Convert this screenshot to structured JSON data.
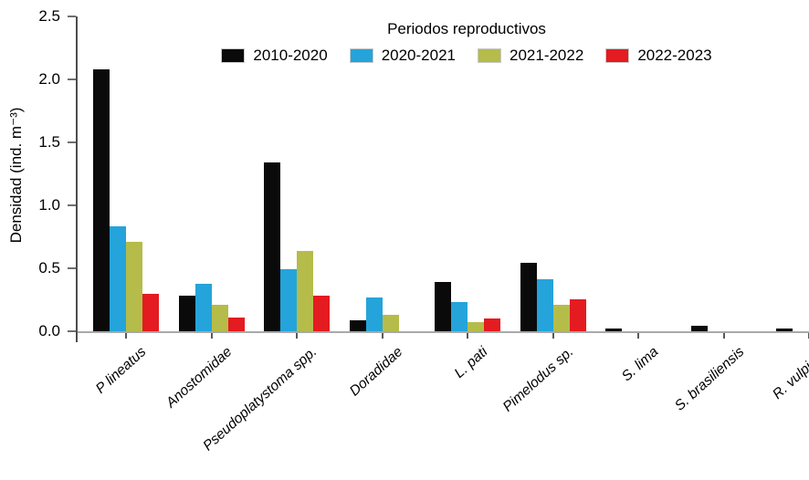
{
  "legend": {
    "title": "Periodos reproductivos"
  },
  "chart_data": {
    "type": "bar",
    "subtype": "grouped-vertical",
    "legend_title": "Periodos reproductivos",
    "legend_position": "top-center",
    "grid": false,
    "xlabel": "",
    "ylabel": "Densidad (ind. m⁻³)",
    "ylim": [
      0,
      2.5
    ],
    "yticks": [
      0,
      0.5,
      1.0,
      1.5,
      2.0,
      2.5
    ],
    "ytick_labels": [
      "0.0",
      "0.5",
      "1.0",
      "1.5",
      "2.0",
      "2.5"
    ],
    "categories": [
      "P lineatus",
      "Anostomidae",
      "Pseudoplatystoma spp.",
      "Doradidae",
      "L. pati",
      "Pimelodus sp.",
      "S. lima",
      "S. brasiliensis",
      "R. vulpinus"
    ],
    "series": [
      {
        "name": "2010-2020",
        "color": "#0a0a0a",
        "values": [
          2.08,
          0.28,
          1.34,
          0.09,
          0.39,
          0.54,
          0.02,
          0.04,
          0.02
        ]
      },
      {
        "name": "2020-2021",
        "color": "#24a4da",
        "values": [
          0.83,
          0.38,
          0.49,
          0.27,
          0.23,
          0.41,
          0,
          0,
          0
        ]
      },
      {
        "name": "2021-2022",
        "color": "#b5bc4a",
        "values": [
          0.71,
          0.21,
          0.64,
          0.13,
          0.07,
          0.21,
          0,
          0,
          0
        ]
      },
      {
        "name": "2022-2023",
        "color": "#e41b20",
        "values": [
          0.3,
          0.11,
          0.28,
          0,
          0.1,
          0.25,
          0,
          0,
          0
        ]
      }
    ],
    "axis_colors": {
      "y_axis": "#4d4d4d",
      "y_tick": "#6d6e71",
      "x_axis": "#a7a9ac",
      "x_tick": "#58595b"
    }
  }
}
